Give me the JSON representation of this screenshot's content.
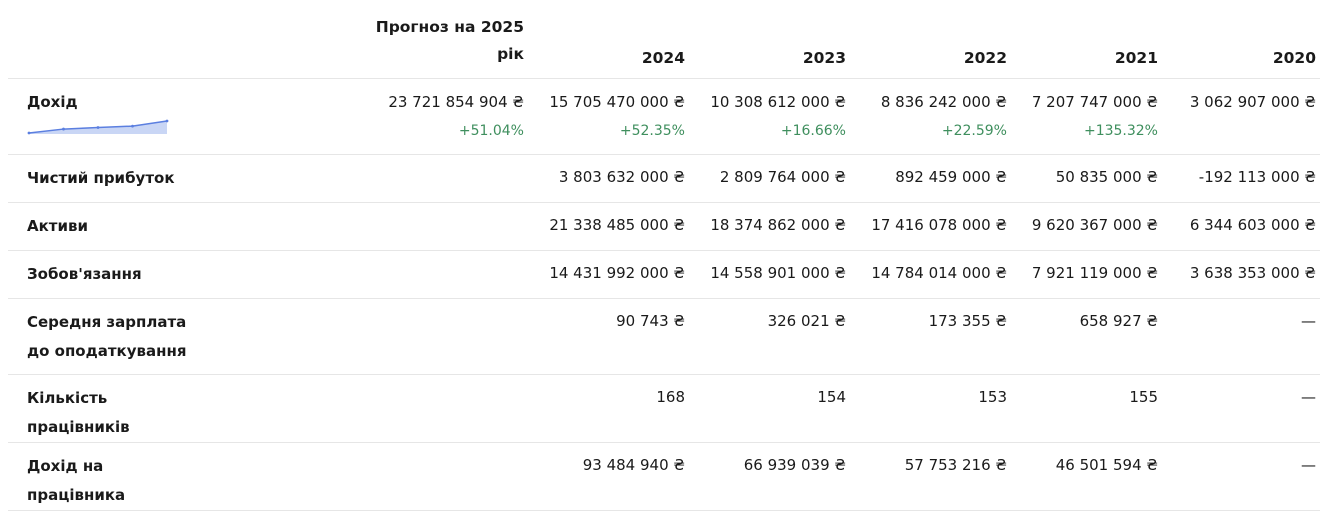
{
  "header": {
    "forecast_line1": "Прогноз на 2025",
    "forecast_line2": "рік",
    "years": [
      "2024",
      "2023",
      "2022",
      "2021",
      "2020"
    ]
  },
  "rows": [
    {
      "label": "Дохід",
      "forecast": "23 721 854 904 ₴",
      "values": [
        "15 705 470 000 ₴",
        "10 308 612 000 ₴",
        "8 836 242 000 ₴",
        "7 207 747 000 ₴",
        "3 062 907 000 ₴"
      ],
      "changes": [
        "+51.04%",
        "+52.35%",
        "+16.66%",
        "+22.59%",
        "+135.32%"
      ],
      "sparkline": {
        "icon": "income-trend-sparkline",
        "color": "#5b7fe0",
        "fill": "#c9d6f5",
        "points": [
          3062907000,
          7207747000,
          8836242000,
          10308612000,
          15705470000
        ]
      }
    },
    {
      "label": "Чистий прибуток",
      "forecast": "",
      "values": [
        "3 803 632 000 ₴",
        "2 809 764 000 ₴",
        "892 459 000 ₴",
        "50 835 000 ₴",
        "-192 113 000 ₴"
      ]
    },
    {
      "label": "Активи",
      "forecast": "",
      "values": [
        "21 338 485 000 ₴",
        "18 374 862 000 ₴",
        "17 416 078 000 ₴",
        "9 620 367 000 ₴",
        "6 344 603 000 ₴"
      ]
    },
    {
      "label": "Зобов'язання",
      "forecast": "",
      "values": [
        "14 431 992 000 ₴",
        "14 558 901 000 ₴",
        "14 784 014 000 ₴",
        "7 921 119 000 ₴",
        "3 638 353 000 ₴"
      ]
    },
    {
      "label": "Середня зарплата до оподаткування",
      "forecast": "",
      "values": [
        "90 743 ₴",
        "326 021 ₴",
        "173 355 ₴",
        "658 927 ₴",
        "—"
      ]
    },
    {
      "label": "Кількість працівників",
      "forecast": "",
      "values": [
        "168",
        "154",
        "153",
        "155",
        "—"
      ]
    },
    {
      "label": "Дохід на працівника",
      "forecast": "",
      "values": [
        "93 484 940 ₴",
        "66 939 039 ₴",
        "57 753 216 ₴",
        "46 501 594 ₴",
        "—"
      ]
    }
  ]
}
